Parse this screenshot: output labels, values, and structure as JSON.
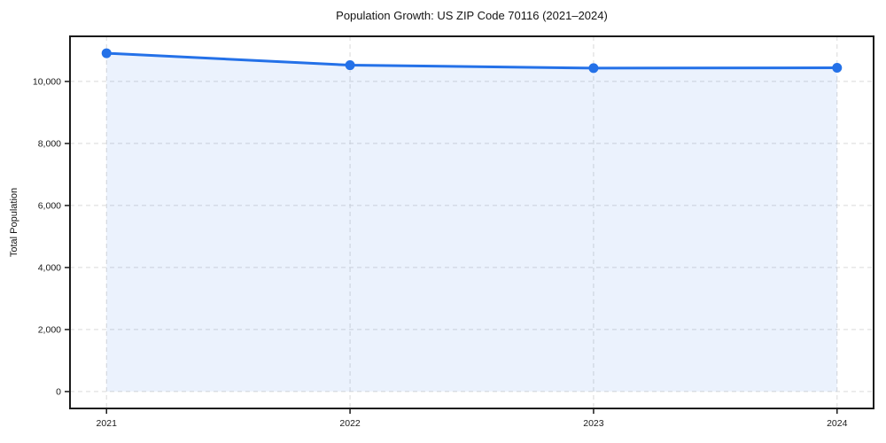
{
  "figure": {
    "title": "Population Growth: US ZIP Code 70116 (2021–2024)",
    "ylabel": "Total Population"
  },
  "chart_data": {
    "type": "area",
    "title": "Population Growth: US ZIP Code 70116 (2021–2024)",
    "xlabel": "",
    "ylabel": "Total Population",
    "x": [
      2021,
      2022,
      2023,
      2024
    ],
    "categories": [
      "2021",
      "2022",
      "2023",
      "2024"
    ],
    "series": [
      {
        "name": "Total Population",
        "values": [
          10910,
          10525,
          10430,
          10440
        ]
      }
    ],
    "fill_baseline": 0,
    "xlim": [
      2020.85,
      2024.15
    ],
    "ylim": [
      -545,
      11455
    ],
    "xticks": [
      2021,
      2022,
      2023,
      2024
    ],
    "yticks": [
      0,
      2000,
      4000,
      6000,
      8000,
      10000
    ],
    "grid": true,
    "grid_style": "dashed",
    "legend": false,
    "colors": {
      "line": "#2471e8",
      "marker": "#2471e8",
      "fill": "#2471e8",
      "fill_opacity": 0.09,
      "grid": "#d9d9d9",
      "spine": "#1a1a1a",
      "text": "#1a1a1a",
      "background": "#ffffff"
    }
  }
}
